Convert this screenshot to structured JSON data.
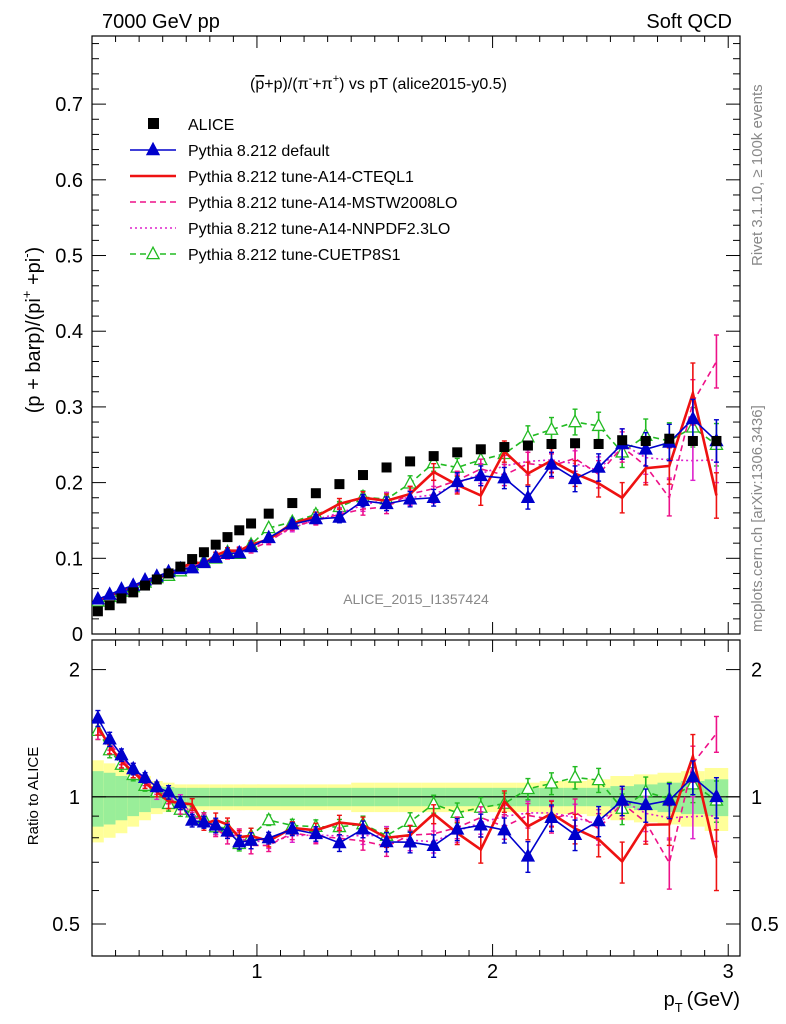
{
  "header": {
    "left": "7000 GeV pp",
    "right": "Soft QCD"
  },
  "side_labels": {
    "rivet": "Rivet 3.1.10, ≥ 100k events",
    "mcplots": "mcplots.cern.ch [arXiv:1306.3436]"
  },
  "chart_data": {
    "type": "line",
    "title": "(p̄+p)/(π⁻+π⁺) vs pT (alice2015-y0.5)",
    "title_parts": {
      "pre": "(",
      "pbar": "p",
      "mid": "+p)/(π",
      "sup1": "-",
      "mid2": "+π",
      "sup2": "+",
      "post": ") vs pT (alice2015-y0.5)"
    },
    "watermark": "ALICE_2015_I1357424",
    "ylabel": "(p + barp)/(pi⁺ +pi⁻)",
    "ylabel_parts": {
      "a": "(p + barp)/(pi",
      "sup1": "+",
      "b": " +pi",
      "sup2": "-",
      "c": ")"
    },
    "ratio_ylabel": "Ratio to ALICE",
    "xlabel": "p_T (GeV)",
    "xlabel_parts": {
      "p": "p",
      "sub": "T",
      "unit": "(GeV)"
    },
    "xlim": [
      0.3,
      3.05
    ],
    "ylim": [
      0,
      0.79
    ],
    "ratio_ylim": [
      0.42,
      2.35
    ],
    "x_ticks": [
      1,
      2,
      3
    ],
    "y_ticks": [
      0,
      0.1,
      0.2,
      0.3,
      0.4,
      0.5,
      0.6,
      0.7
    ],
    "ratio_ticks": [
      0.5,
      1,
      2
    ],
    "x": [
      0.325,
      0.375,
      0.425,
      0.475,
      0.525,
      0.575,
      0.625,
      0.675,
      0.725,
      0.775,
      0.825,
      0.875,
      0.925,
      0.975,
      1.05,
      1.15,
      1.25,
      1.35,
      1.45,
      1.55,
      1.65,
      1.75,
      1.85,
      1.95,
      2.05,
      2.15,
      2.25,
      2.35,
      2.45,
      2.55,
      2.65,
      2.75,
      2.85,
      2.95
    ],
    "data": {
      "name": "ALICE",
      "values": [
        0.03,
        0.038,
        0.047,
        0.055,
        0.064,
        0.072,
        0.08,
        0.089,
        0.099,
        0.108,
        0.118,
        0.128,
        0.137,
        0.146,
        0.159,
        0.173,
        0.186,
        0.198,
        0.21,
        0.22,
        0.228,
        0.235,
        0.24,
        0.244,
        0.247,
        0.249,
        0.251,
        0.252,
        0.251,
        0.256,
        0.255,
        0.258,
        0.255,
        0.255
      ],
      "band_inner": [
        0.15,
        0.14,
        0.12,
        0.1,
        0.08,
        0.06,
        0.055,
        0.05,
        0.05,
        0.05,
        0.05,
        0.05,
        0.05,
        0.05,
        0.05,
        0.05,
        0.05,
        0.05,
        0.05,
        0.05,
        0.05,
        0.05,
        0.05,
        0.05,
        0.05,
        0.05,
        0.05,
        0.05,
        0.05,
        0.06,
        0.07,
        0.08,
        0.09,
        0.1
      ],
      "band_outer": [
        0.22,
        0.2,
        0.18,
        0.15,
        0.12,
        0.09,
        0.08,
        0.07,
        0.07,
        0.07,
        0.07,
        0.07,
        0.07,
        0.07,
        0.07,
        0.07,
        0.07,
        0.07,
        0.08,
        0.08,
        0.08,
        0.08,
        0.08,
        0.08,
        0.08,
        0.08,
        0.09,
        0.09,
        0.1,
        0.12,
        0.13,
        0.14,
        0.15,
        0.17
      ]
    },
    "series": [
      {
        "name": "Pythia 8.212 default",
        "color": "#0000cc",
        "style": "solid",
        "marker": "triangle-filled",
        "values": [
          0.046,
          0.052,
          0.059,
          0.064,
          0.071,
          0.076,
          0.082,
          0.086,
          0.087,
          0.094,
          0.101,
          0.106,
          0.107,
          0.115,
          0.127,
          0.145,
          0.152,
          0.154,
          0.176,
          0.172,
          0.178,
          0.18,
          0.201,
          0.209,
          0.206,
          0.18,
          0.224,
          0.205,
          0.22,
          0.251,
          0.244,
          0.253,
          0.284,
          0.255
        ],
        "errors": [
          0.002,
          0.002,
          0.002,
          0.002,
          0.002,
          0.002,
          0.003,
          0.003,
          0.003,
          0.003,
          0.004,
          0.004,
          0.004,
          0.005,
          0.004,
          0.005,
          0.006,
          0.007,
          0.008,
          0.009,
          0.01,
          0.011,
          0.012,
          0.013,
          0.014,
          0.015,
          0.016,
          0.017,
          0.018,
          0.02,
          0.022,
          0.024,
          0.026,
          0.028
        ]
      },
      {
        "name": "Pythia 8.212 tune-A14-CTEQL1",
        "color": "#ee1111",
        "style": "solid",
        "marker": "none",
        "values": [
          0.044,
          0.05,
          0.057,
          0.063,
          0.069,
          0.074,
          0.078,
          0.086,
          0.095,
          0.093,
          0.104,
          0.11,
          0.11,
          0.118,
          0.125,
          0.146,
          0.155,
          0.172,
          0.18,
          0.176,
          0.185,
          0.214,
          0.197,
          0.183,
          0.241,
          0.212,
          0.229,
          0.212,
          0.199,
          0.18,
          0.219,
          0.222,
          0.318,
          0.183
        ],
        "errors": [
          0.002,
          0.002,
          0.002,
          0.002,
          0.002,
          0.002,
          0.003,
          0.003,
          0.003,
          0.003,
          0.004,
          0.004,
          0.004,
          0.005,
          0.004,
          0.005,
          0.006,
          0.007,
          0.008,
          0.009,
          0.01,
          0.011,
          0.012,
          0.013,
          0.014,
          0.015,
          0.016,
          0.017,
          0.018,
          0.02,
          0.022,
          0.024,
          0.04,
          0.03
        ]
      },
      {
        "name": "Pythia 8.212 tune-A14-MSTW2008LO",
        "color": "#ee1188",
        "style": "dashed",
        "marker": "none",
        "values": [
          0.043,
          0.051,
          0.058,
          0.064,
          0.07,
          0.075,
          0.08,
          0.084,
          0.088,
          0.096,
          0.099,
          0.103,
          0.111,
          0.112,
          0.122,
          0.142,
          0.15,
          0.158,
          0.165,
          0.168,
          0.185,
          0.192,
          0.203,
          0.218,
          0.21,
          0.225,
          0.222,
          0.232,
          0.211,
          0.247,
          0.222,
          0.18,
          0.306,
          0.36
        ],
        "errors": [
          0.002,
          0.002,
          0.002,
          0.002,
          0.002,
          0.002,
          0.003,
          0.003,
          0.003,
          0.003,
          0.004,
          0.004,
          0.004,
          0.005,
          0.004,
          0.005,
          0.006,
          0.007,
          0.008,
          0.009,
          0.01,
          0.011,
          0.012,
          0.013,
          0.014,
          0.015,
          0.016,
          0.017,
          0.018,
          0.02,
          0.022,
          0.024,
          0.03,
          0.035
        ]
      },
      {
        "name": "Pythia 8.212 tune-A14-NNPDF2.3LO",
        "color": "#dd22cc",
        "style": "dotted",
        "marker": "none",
        "values": [
          0.044,
          0.05,
          0.057,
          0.063,
          0.069,
          0.073,
          0.08,
          0.087,
          0.09,
          0.095,
          0.1,
          0.107,
          0.109,
          0.115,
          0.124,
          0.14,
          0.151,
          0.16,
          0.17,
          0.178,
          0.18,
          0.184,
          0.199,
          0.212,
          0.222,
          0.228,
          0.23,
          0.225,
          0.216,
          0.251,
          0.233,
          0.23,
          0.229,
          0.23
        ],
        "errors": [
          0.002,
          0.002,
          0.002,
          0.002,
          0.002,
          0.002,
          0.003,
          0.003,
          0.003,
          0.003,
          0.004,
          0.004,
          0.004,
          0.005,
          0.004,
          0.005,
          0.006,
          0.007,
          0.008,
          0.009,
          0.01,
          0.011,
          0.012,
          0.013,
          0.014,
          0.015,
          0.016,
          0.017,
          0.018,
          0.02,
          0.022,
          0.024,
          0.026,
          0.03
        ]
      },
      {
        "name": "Pythia 8.212 tune-CUETP8S1",
        "color": "#22bb22",
        "style": "dashed",
        "marker": "triangle-open",
        "values": [
          0.043,
          0.049,
          0.056,
          0.062,
          0.068,
          0.074,
          0.077,
          0.083,
          0.091,
          0.096,
          0.1,
          0.108,
          0.106,
          0.118,
          0.14,
          0.148,
          0.158,
          0.168,
          0.181,
          0.178,
          0.199,
          0.226,
          0.22,
          0.23,
          0.238,
          0.26,
          0.27,
          0.28,
          0.275,
          0.24,
          0.262,
          0.255,
          0.273,
          0.25
        ],
        "errors": [
          0.002,
          0.002,
          0.002,
          0.002,
          0.002,
          0.002,
          0.003,
          0.003,
          0.003,
          0.003,
          0.004,
          0.004,
          0.004,
          0.005,
          0.004,
          0.005,
          0.006,
          0.007,
          0.008,
          0.009,
          0.01,
          0.011,
          0.012,
          0.013,
          0.014,
          0.015,
          0.016,
          0.017,
          0.018,
          0.02,
          0.022,
          0.024,
          0.026,
          0.028
        ]
      }
    ],
    "legend_position": "top-left"
  }
}
